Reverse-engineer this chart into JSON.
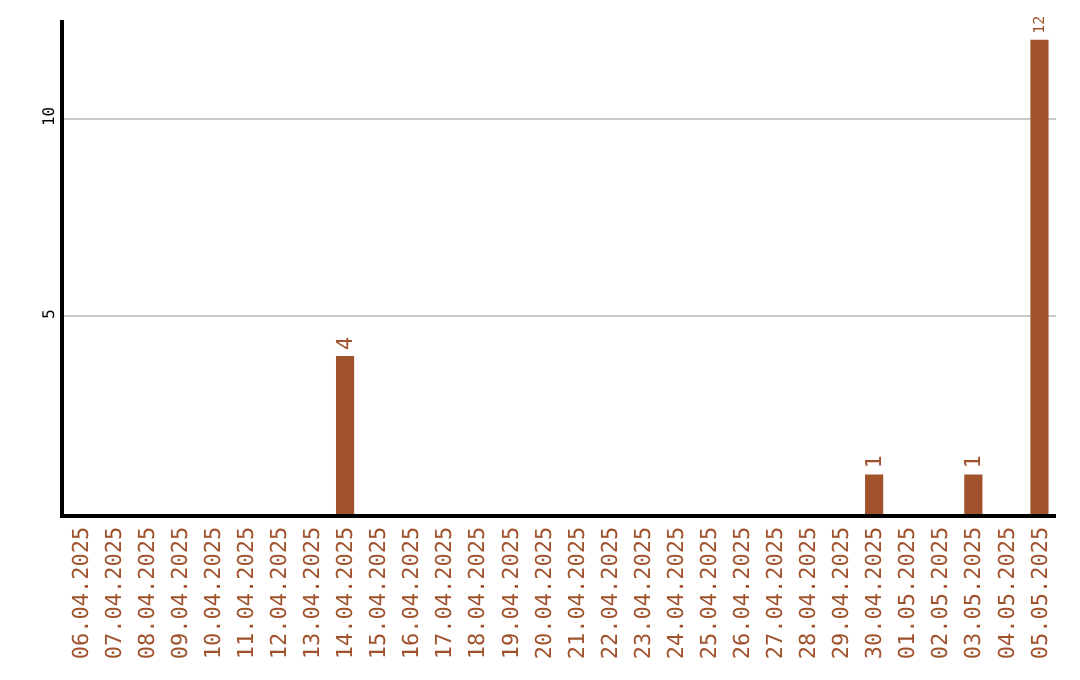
{
  "chart_data": {
    "type": "bar",
    "categories": [
      "06.04.2025",
      "07.04.2025",
      "08.04.2025",
      "09.04.2025",
      "10.04.2025",
      "11.04.2025",
      "12.04.2025",
      "13.04.2025",
      "14.04.2025",
      "15.04.2025",
      "16.04.2025",
      "17.04.2025",
      "18.04.2025",
      "19.04.2025",
      "20.04.2025",
      "21.04.2025",
      "22.04.2025",
      "23.04.2025",
      "24.04.2025",
      "25.04.2025",
      "26.04.2025",
      "27.04.2025",
      "28.04.2025",
      "29.04.2025",
      "30.04.2025",
      "01.05.2025",
      "02.05.2025",
      "03.05.2025",
      "04.05.2025",
      "05.05.2025"
    ],
    "values": [
      0,
      0,
      0,
      0,
      0,
      0,
      0,
      0,
      4,
      0,
      0,
      0,
      0,
      0,
      0,
      0,
      0,
      0,
      0,
      0,
      0,
      0,
      0,
      0,
      1,
      0,
      0,
      1,
      0,
      12
    ],
    "value_labels": [
      null,
      null,
      null,
      null,
      null,
      null,
      null,
      null,
      "4",
      null,
      null,
      null,
      null,
      null,
      null,
      null,
      null,
      null,
      null,
      null,
      null,
      null,
      null,
      null,
      "1",
      null,
      null,
      "1",
      null,
      "12"
    ],
    "color": "#a0522d",
    "ylim": [
      0,
      12.5
    ],
    "yticks": [
      5,
      10
    ],
    "grid": "y",
    "legend": false
  }
}
